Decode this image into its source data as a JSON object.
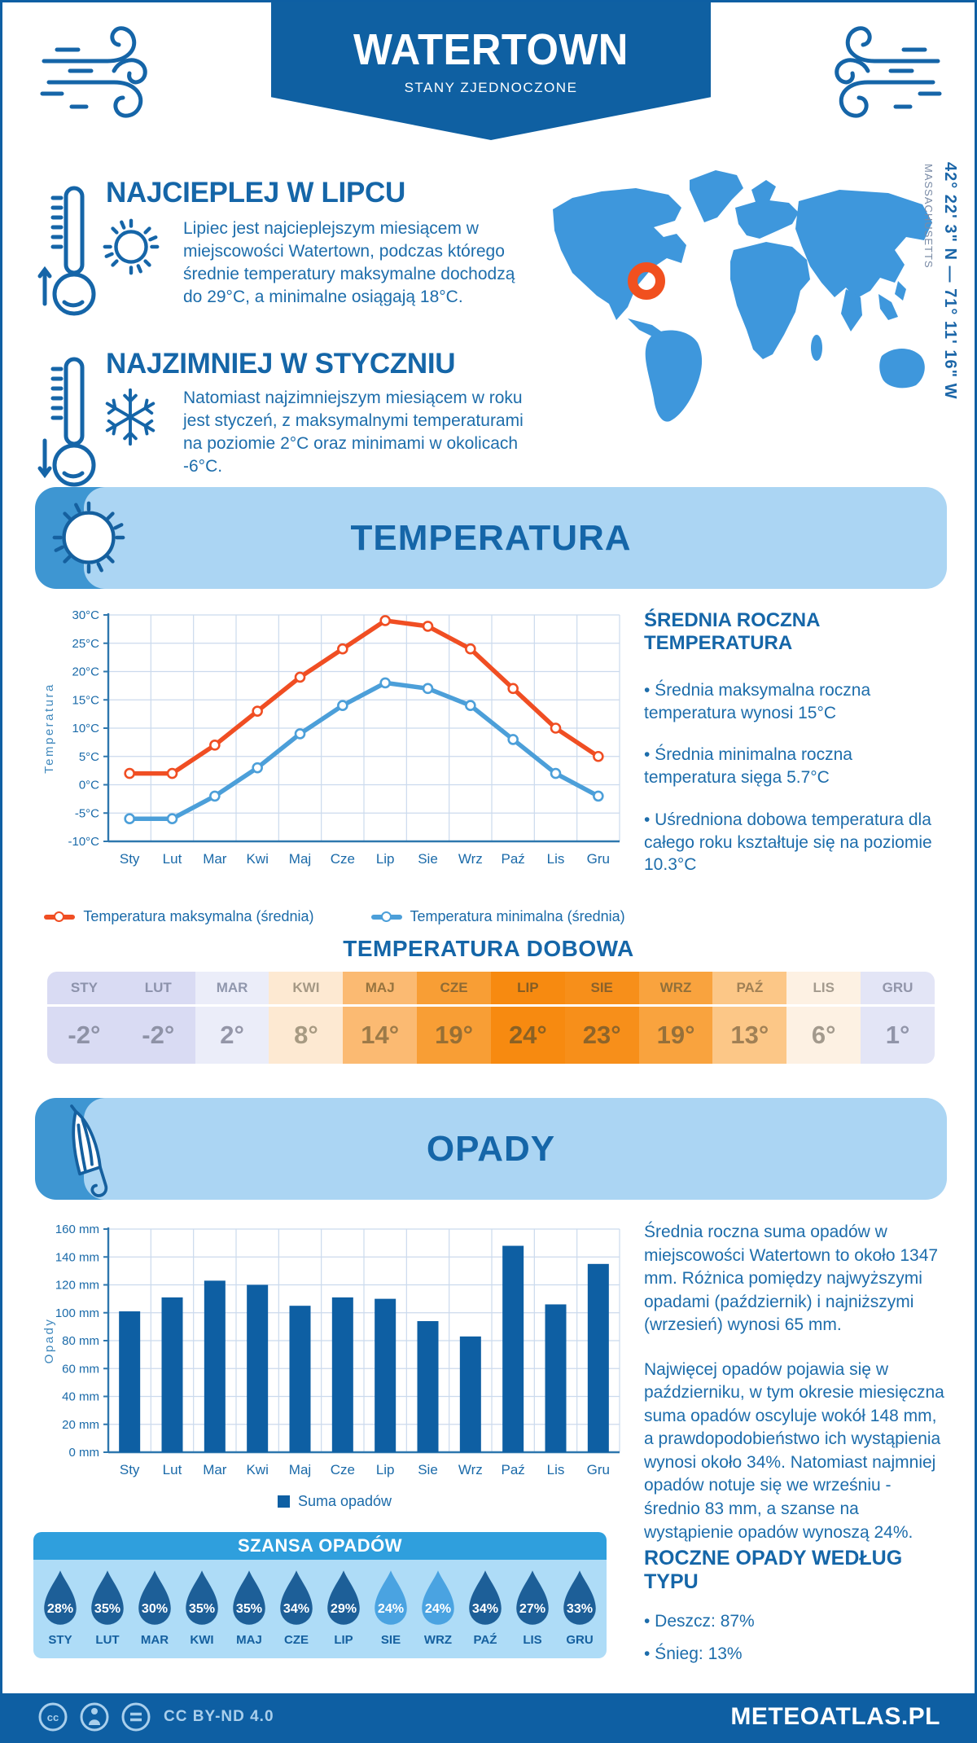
{
  "header": {
    "title": "WATERTOWN",
    "subtitle": "STANY ZJEDNOCZONE"
  },
  "location": {
    "coordinates": "42° 22' 3\" N — 71° 11' 16\" W",
    "region": "MASSACHUSETTS"
  },
  "highlights": {
    "warmest": {
      "heading": "NAJCIEPLEJ W LIPCU",
      "text": "Lipiec jest najcieplejszym miesiącem w miejscowości Watertown, podczas którego średnie temperatury maksymalne dochodzą do 29°C, a minimalne osiągają 18°C."
    },
    "coldest": {
      "heading": "NAJZIMNIEJ W STYCZNIU",
      "text": "Natomiast najzimniejszym miesiącem w roku jest styczeń, z maksymalnymi temperaturami na poziomie 2°C oraz minimami w okolicach -6°C."
    }
  },
  "temperature": {
    "banner": "TEMPERATURA",
    "summary_heading": "ŚREDNIA ROCZNA TEMPERATURA",
    "bullets": [
      "• Średnia maksymalna roczna temperatura wynosi 15°C",
      "• Średnia minimalna roczna temperatura sięga 5.7°C",
      "• Uśredniona dobowa temperatura dla całego roku kształtuje się na poziomie 10.3°C"
    ],
    "daily_title": "TEMPERATURA DOBOWA"
  },
  "precipitation": {
    "banner": "OPADY",
    "paragraphs": [
      "Średnia roczna suma opadów w miejscowości Watertown to około 1347 mm. Różnica pomiędzy najwyższymi opadami (październik) i najniższymi (wrzesień) wynosi 65 mm.",
      "Najwięcej opadów pojawia się w październiku, w tym okresie miesięczna suma opadów oscyluje wokół 148 mm, a prawdopodobieństwo ich wystąpienia wynosi około 34%. Natomiast najmniej opadów notuje się we wrześniu - średnio 83 mm, a szanse na wystąpienie opadów wynoszą 24%."
    ],
    "type_heading": "ROCZNE OPADY WEDŁUG TYPU",
    "type_bullets": [
      "• Deszcz: 87%",
      "• Śnieg: 13%"
    ],
    "chance_title": "SZANSA OPADÓW"
  },
  "footer": {
    "license": "CC BY-ND 4.0",
    "brand": "METEOATLAS.PL"
  },
  "chart_data": [
    {
      "type": "line",
      "title": "Temperatura",
      "categories": [
        "Sty",
        "Lut",
        "Mar",
        "Kwi",
        "Maj",
        "Cze",
        "Lip",
        "Sie",
        "Wrz",
        "Paź",
        "Lis",
        "Gru"
      ],
      "series": [
        {
          "name": "Temperatura maksymalna (średnia)",
          "color": "#f04e23",
          "values": [
            2,
            2,
            7,
            13,
            19,
            24,
            29,
            28,
            24,
            17,
            10,
            5
          ]
        },
        {
          "name": "Temperatura minimalna (średnia)",
          "color": "#4c9fd9",
          "values": [
            -6,
            -6,
            -2,
            3,
            9,
            14,
            18,
            17,
            14,
            8,
            2,
            -2
          ]
        }
      ],
      "xlabel": "",
      "ylabel": "Temperatura",
      "ylim": [
        -10,
        30
      ],
      "ytick_step": 5,
      "yunit": "°C",
      "grid": true,
      "legend_position": "bottom"
    },
    {
      "type": "table",
      "title": "TEMPERATURA DOBOWA",
      "categories": [
        "STY",
        "LUT",
        "MAR",
        "KWI",
        "MAJ",
        "CZE",
        "LIP",
        "SIE",
        "WRZ",
        "PAŹ",
        "LIS",
        "GRU"
      ],
      "values": [
        -2,
        -2,
        2,
        8,
        14,
        19,
        24,
        23,
        19,
        13,
        6,
        1
      ],
      "unit": "°",
      "cell_colors": [
        "#d9dbf3",
        "#d9dbf3",
        "#ebedf9",
        "#fde9d2",
        "#fbba72",
        "#f89e35",
        "#f78a10",
        "#f78f1a",
        "#f9a33e",
        "#fcc787",
        "#fdf1e3",
        "#e3e5f6"
      ],
      "header_text_colors": [
        "#8c92ab",
        "#8c92ab",
        "#9097ad",
        "#a59884",
        "#97743f",
        "#8f6a34",
        "#855d24",
        "#8a612b",
        "#91703a",
        "#a08055",
        "#a39a8d",
        "#9195a9"
      ],
      "value_text_colors": [
        "#8e92a6",
        "#8e92a6",
        "#9496a8",
        "#a79a82",
        "#9c7a48",
        "#966f35",
        "#8a6124",
        "#8d642a",
        "#95703a",
        "#a08055",
        "#a39a8d",
        "#9195a9"
      ]
    },
    {
      "type": "bar",
      "title": "Suma opadów",
      "categories": [
        "Sty",
        "Lut",
        "Mar",
        "Kwi",
        "Maj",
        "Cze",
        "Lip",
        "Sie",
        "Wrz",
        "Paź",
        "Lis",
        "Gru"
      ],
      "values": [
        101,
        111,
        123,
        120,
        105,
        111,
        110,
        94,
        83,
        148,
        106,
        135
      ],
      "xlabel": "",
      "ylabel": "Opady",
      "ylim": [
        0,
        160
      ],
      "ytick_step": 20,
      "yunit": " mm",
      "grid": true,
      "bar_color": "#0e5fa3",
      "legend": "Suma opadów",
      "legend_position": "bottom"
    },
    {
      "type": "drops",
      "title": "SZANSA OPADÓW",
      "categories": [
        "STY",
        "LUT",
        "MAR",
        "KWI",
        "MAJ",
        "CZE",
        "LIP",
        "SIE",
        "WRZ",
        "PAŹ",
        "LIS",
        "GRU"
      ],
      "values": [
        28,
        35,
        30,
        35,
        35,
        34,
        29,
        24,
        24,
        34,
        27,
        33
      ],
      "unit": "%",
      "drop_colors": [
        "#1d5f98",
        "#1d5f98",
        "#1d5f98",
        "#1d5f98",
        "#1d5f98",
        "#1d5f98",
        "#1d5f98",
        "#4aa3e1",
        "#4aa3e1",
        "#1d5f98",
        "#1d5f98",
        "#1d5f98"
      ]
    }
  ]
}
